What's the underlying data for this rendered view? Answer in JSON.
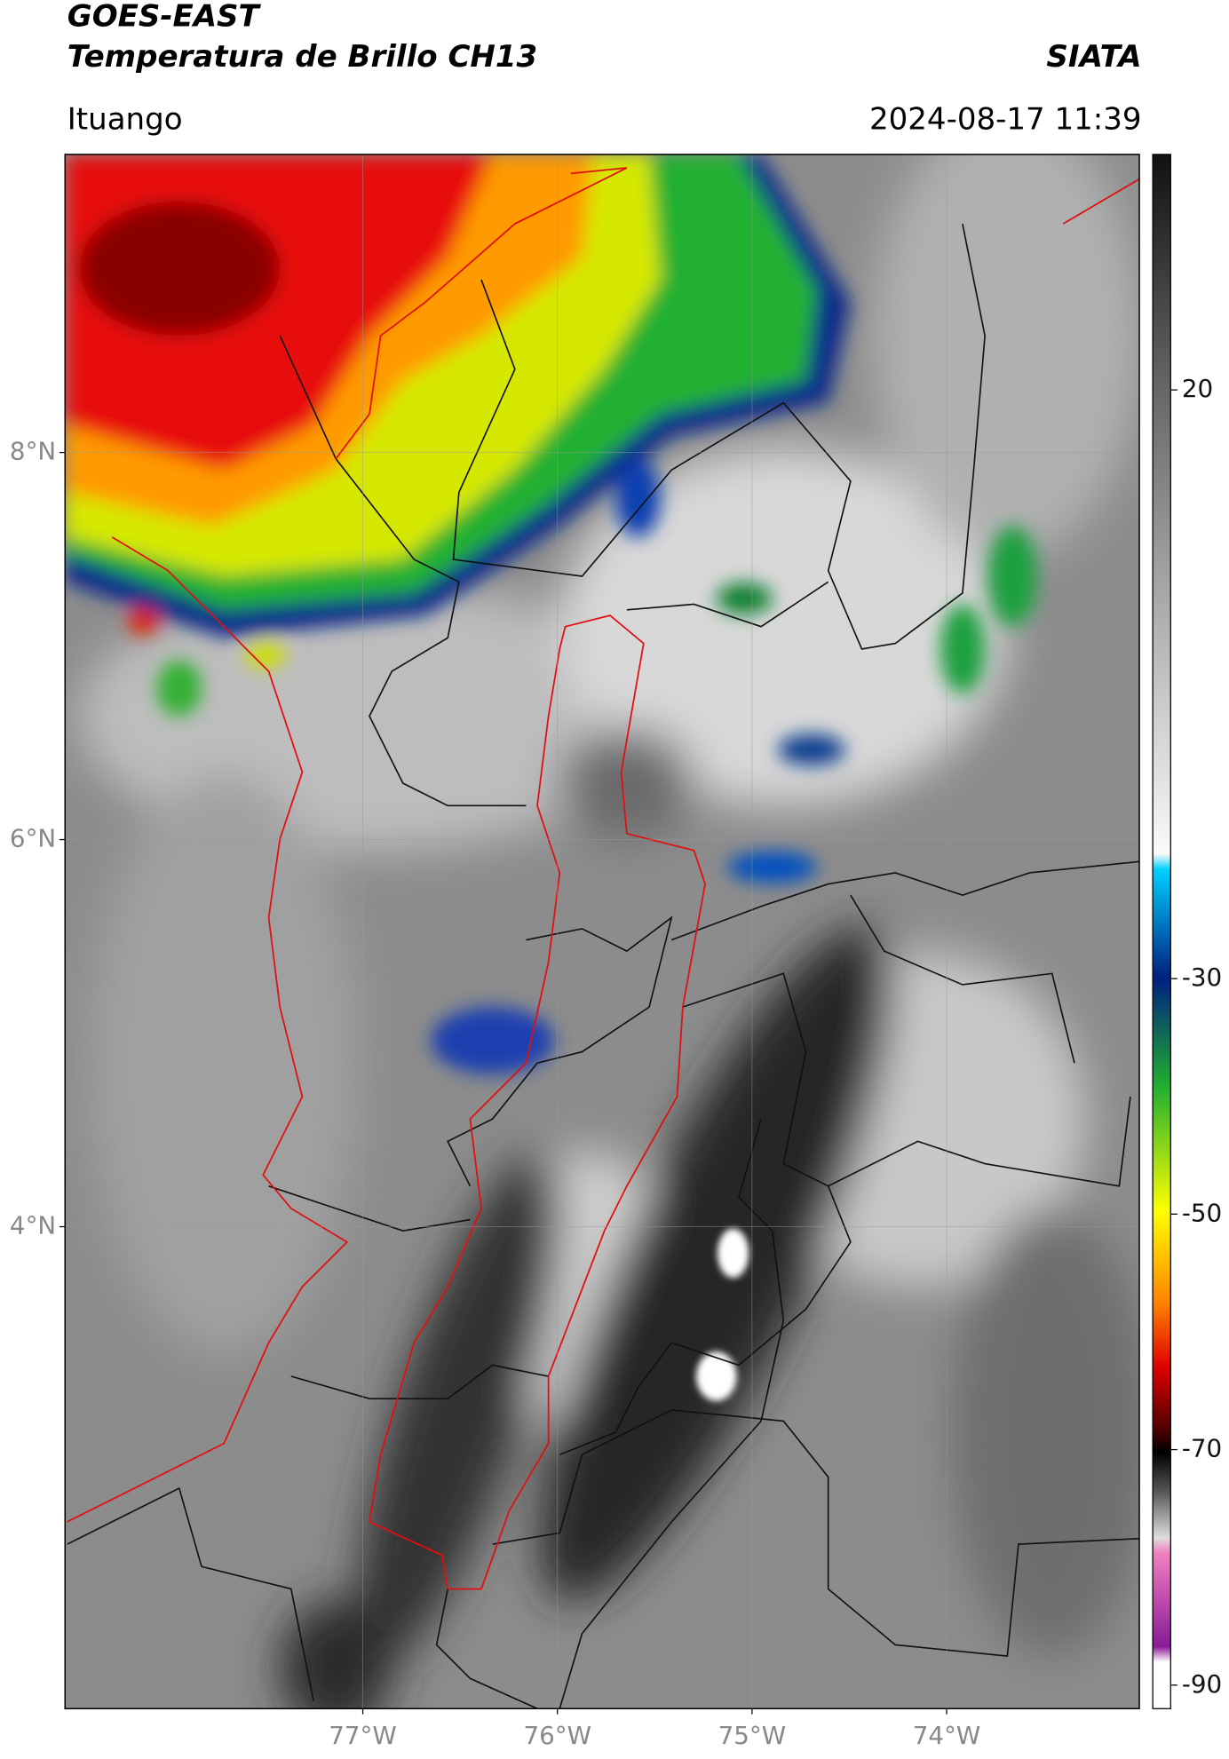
{
  "header": {
    "satellite": "GOES-EAST",
    "product": "Temperatura de Brillo CH13",
    "source": "SIATA",
    "location": "Ituango",
    "datetime": "2024-08-17 11:39"
  },
  "map": {
    "xlim": [
      -78.53,
      -73.01
    ],
    "ylim": [
      1.51,
      9.54
    ],
    "xticks": [
      {
        "value": -77,
        "label": "77°W"
      },
      {
        "value": -76,
        "label": "76°W"
      },
      {
        "value": -75,
        "label": "75°W"
      },
      {
        "value": -74,
        "label": "74°W"
      }
    ],
    "yticks": [
      {
        "value": 8,
        "label": "8°N"
      },
      {
        "value": 6,
        "label": "6°N"
      },
      {
        "value": 4,
        "label": "4°N"
      }
    ],
    "grid": true
  },
  "colorbar": {
    "lim": [
      40,
      -92
    ],
    "ticks": [
      20,
      -30,
      -50,
      -70,
      -90
    ]
  }
}
